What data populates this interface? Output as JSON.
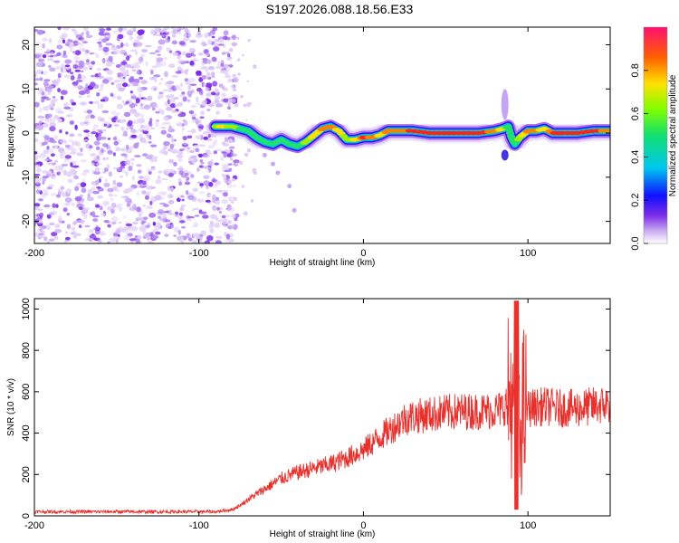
{
  "title": "S197.2026.088.18.56.E33",
  "chart_data": [
    {
      "type": "heatmap",
      "title": "S197.2026.088.18.56.E33",
      "xlabel": "Height of straight line (km)",
      "ylabel": "Frequency (Hz)",
      "xlim": [
        -200,
        150
      ],
      "ylim": [
        -25,
        24
      ],
      "xticks": [
        -200,
        -100,
        0,
        100
      ],
      "yticks": [
        -20,
        -10,
        0,
        10,
        20
      ],
      "colorbar": {
        "label": "Normalized spectral amplitude",
        "range": [
          0,
          1
        ],
        "ticks": [
          0,
          0.2,
          0.4,
          0.6,
          0.8
        ],
        "tick_labels": [
          "0.0",
          "0.2",
          "0.4",
          "0.6",
          "0.8"
        ]
      },
      "noise_region_x": [
        -200,
        -82
      ],
      "ridge": {
        "x": [
          -90,
          -85,
          -80,
          -75,
          -70,
          -65,
          -60,
          -55,
          -50,
          -45,
          -40,
          -35,
          -30,
          -25,
          -20,
          -15,
          -10,
          -5,
          0,
          5,
          10,
          15,
          20,
          30,
          40,
          50,
          60,
          70,
          80,
          85,
          88,
          90,
          92,
          95,
          100,
          105,
          110,
          115,
          120,
          130,
          140,
          150
        ],
        "freq": [
          1.5,
          1.5,
          1.5,
          1.0,
          0.5,
          -1.0,
          -2.0,
          -2.5,
          -1.5,
          -2.5,
          -3.0,
          -2.0,
          -0.5,
          1.0,
          1.5,
          0.5,
          -1.5,
          -1.5,
          -1.0,
          -1.0,
          -0.5,
          0.5,
          0.5,
          0.5,
          0.0,
          0.0,
          0.0,
          0.0,
          0.5,
          1.0,
          1.5,
          -1.0,
          -2.5,
          -1.0,
          0.5,
          0.5,
          1.0,
          0.0,
          0.0,
          0.0,
          0.5,
          0.5
        ],
        "amplitude": [
          0.6,
          0.7,
          0.6,
          0.5,
          0.5,
          0.4,
          0.3,
          0.4,
          0.5,
          0.4,
          0.3,
          0.6,
          0.7,
          0.8,
          0.85,
          0.7,
          0.6,
          0.7,
          0.9,
          0.85,
          0.75,
          0.8,
          0.85,
          0.9,
          0.95,
          0.92,
          0.95,
          0.9,
          0.85,
          0.7,
          0.4,
          0.3,
          0.35,
          0.6,
          0.85,
          0.8,
          0.7,
          0.9,
          0.95,
          0.95,
          0.9,
          0.85
        ]
      },
      "features": [
        {
          "x": 86,
          "freq": [
            3,
            10
          ],
          "label": "broadband burst"
        }
      ]
    },
    {
      "type": "line",
      "xlabel": "Height of straight line (km)",
      "ylabel": "SNR (10 * v/v)",
      "xlim": [
        -200,
        150
      ],
      "ylim": [
        0,
        1050
      ],
      "xticks": [
        -200,
        -100,
        0,
        100
      ],
      "yticks": [
        0,
        200,
        400,
        600,
        800,
        1000
      ],
      "series": [
        {
          "name": "SNR",
          "color": "#e8302c",
          "x": [
            -200,
            -180,
            -160,
            -140,
            -120,
            -100,
            -90,
            -80,
            -75,
            -70,
            -60,
            -50,
            -40,
            -30,
            -20,
            -10,
            0,
            10,
            20,
            25,
            30,
            40,
            50,
            60,
            70,
            80,
            85,
            88,
            90,
            92,
            94,
            96,
            100,
            110,
            120,
            130,
            140,
            150
          ],
          "y": [
            20,
            20,
            20,
            20,
            20,
            20,
            20,
            30,
            50,
            80,
            130,
            180,
            210,
            230,
            250,
            280,
            320,
            380,
            440,
            470,
            480,
            490,
            500,
            505,
            505,
            510,
            520,
            560,
            600,
            150,
            200,
            500,
            520,
            530,
            520,
            520,
            530,
            540
          ]
        }
      ],
      "annotations": [
        {
          "x": 93,
          "y_min": 30,
          "y_max": 1040,
          "label": "oscillation spike"
        }
      ]
    }
  ]
}
